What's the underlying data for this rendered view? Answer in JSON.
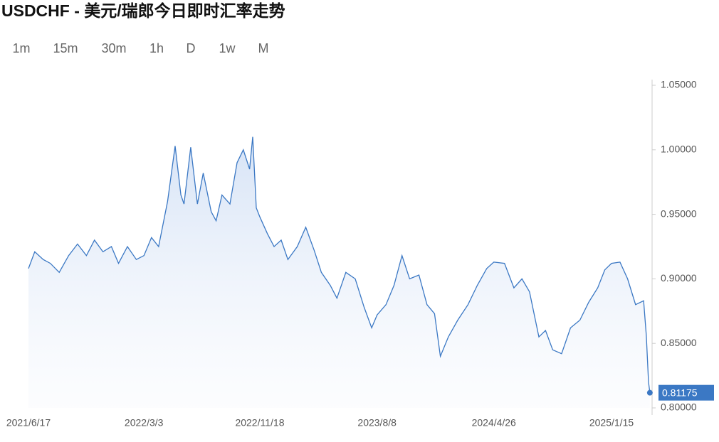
{
  "toolbar": {
    "options": [
      "1m",
      "15m",
      "30m",
      "1h",
      "D",
      "1w",
      "M"
    ],
    "active": "D"
  },
  "chart_data": {
    "type": "line",
    "title": "USDCHF - 美元/瑞郎今日即时汇率走势",
    "color": "#3b78c4",
    "x": [
      "2021/6/17",
      "2021/7/1",
      "2021/7/20",
      "2021/8/5",
      "2021/8/25",
      "2021/9/15",
      "2021/10/5",
      "2021/10/25",
      "2021/11/12",
      "2021/12/1",
      "2021/12/20",
      "2022/1/5",
      "2022/1/25",
      "2022/2/14",
      "2022/3/3",
      "2022/3/20",
      "2022/4/5",
      "2022/4/25",
      "2022/5/12",
      "2022/5/25",
      "2022/6/1",
      "2022/6/16",
      "2022/7/1",
      "2022/7/14",
      "2022/8/1",
      "2022/8/12",
      "2022/8/25",
      "2022/9/12",
      "2022/9/28",
      "2022/10/12",
      "2022/10/26",
      "2022/11/2",
      "2022/11/10",
      "2022/11/18",
      "2022/12/5",
      "2022/12/20",
      "2023/1/5",
      "2023/1/20",
      "2023/2/10",
      "2023/3/1",
      "2023/3/20",
      "2023/4/5",
      "2023/4/25",
      "2023/5/10",
      "2023/5/30",
      "2023/6/20",
      "2023/7/10",
      "2023/7/27",
      "2023/8/8",
      "2023/8/28",
      "2023/9/15",
      "2023/10/3",
      "2023/10/20",
      "2023/11/10",
      "2023/11/28",
      "2023/12/15",
      "2023/12/28",
      "2024/1/15",
      "2024/2/5",
      "2024/2/28",
      "2024/3/20",
      "2024/4/10",
      "2024/4/26",
      "2024/5/20",
      "2024/6/10",
      "2024/6/28",
      "2024/7/15",
      "2024/8/5",
      "2024/8/20",
      "2024/9/5",
      "2024/9/25",
      "2024/10/15",
      "2024/11/5",
      "2024/11/25",
      "2024/12/15",
      "2024/12/31",
      "2025/1/15",
      "2025/2/3",
      "2025/2/20",
      "2025/3/10",
      "2025/3/28",
      "2025/4/3",
      "2025/4/8",
      "2025/4/11"
    ],
    "values": [
      0.908,
      0.921,
      0.915,
      0.912,
      0.905,
      0.918,
      0.927,
      0.918,
      0.93,
      0.921,
      0.925,
      0.912,
      0.925,
      0.915,
      0.918,
      0.932,
      0.925,
      0.96,
      1.003,
      0.965,
      0.958,
      1.002,
      0.958,
      0.982,
      0.952,
      0.945,
      0.965,
      0.958,
      0.99,
      1.0,
      0.985,
      1.01,
      0.955,
      0.948,
      0.935,
      0.925,
      0.93,
      0.915,
      0.925,
      0.94,
      0.922,
      0.905,
      0.895,
      0.885,
      0.905,
      0.9,
      0.878,
      0.862,
      0.872,
      0.88,
      0.895,
      0.918,
      0.9,
      0.903,
      0.88,
      0.873,
      0.84,
      0.855,
      0.868,
      0.88,
      0.895,
      0.908,
      0.913,
      0.912,
      0.893,
      0.9,
      0.89,
      0.855,
      0.86,
      0.845,
      0.842,
      0.862,
      0.868,
      0.882,
      0.893,
      0.907,
      0.912,
      0.913,
      0.9,
      0.88,
      0.883,
      0.856,
      0.82,
      0.81175
    ],
    "xlim": [
      "2021/6/17",
      "2025/4/16"
    ],
    "xticks": [
      "2021/6/17",
      "2022/3/3",
      "2022/11/18",
      "2023/8/8",
      "2024/4/26",
      "2025/1/15"
    ],
    "ylim": [
      0.8,
      1.05
    ],
    "yticks": [
      {
        "value": 0.8,
        "label": "0.80000"
      },
      {
        "value": 0.85,
        "label": "0.85000"
      },
      {
        "value": 0.9,
        "label": "0.90000"
      },
      {
        "value": 0.95,
        "label": "0.95000"
      },
      {
        "value": 1.0,
        "label": "1.00000"
      },
      {
        "value": 1.05,
        "label": "1.05000"
      }
    ],
    "grid": false
  }
}
